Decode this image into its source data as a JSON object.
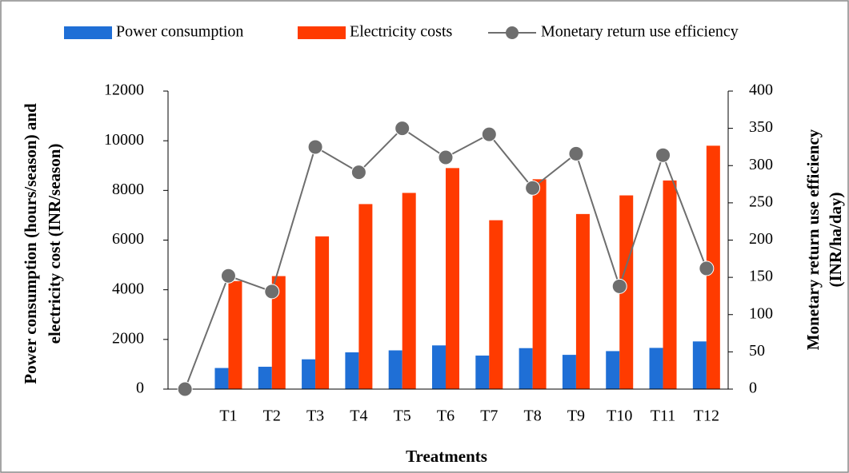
{
  "chart_data": {
    "type": "bar-line",
    "x_label": "Treatments",
    "y_label": [
      "Power consumption (hours/season) and",
      "electricity cost (INR/season)"
    ],
    "y2_label": [
      "Monetary return use efficiency",
      "(INR/ha/day)"
    ],
    "categories": [
      null,
      "T1",
      "T2",
      "T3",
      "T4",
      "T5",
      "T6",
      "T7",
      "T8",
      "T9",
      "T10",
      "T11",
      "T12"
    ],
    "series": [
      {
        "name": "Power consumption",
        "type": "bar",
        "color": "#1f6fd6",
        "values": [
          null,
          850,
          900,
          1200,
          1480,
          1560,
          1760,
          1350,
          1650,
          1380,
          1530,
          1660,
          1920
        ]
      },
      {
        "name": "Electricity costs",
        "type": "bar",
        "color": "#ff3b00",
        "values": [
          null,
          4350,
          4550,
          6150,
          7450,
          7900,
          8900,
          6800,
          8450,
          7050,
          7800,
          8400,
          9800
        ]
      },
      {
        "name": "Monetary return use efficiency",
        "type": "line",
        "axis": "y2",
        "color": "#6e6e6e",
        "values": [
          0,
          152,
          131,
          325,
          291,
          350,
          311,
          342,
          270,
          316,
          138,
          314,
          162
        ]
      }
    ],
    "ylim": [
      0,
      12000
    ],
    "yticks": [
      0,
      2000,
      4000,
      6000,
      8000,
      10000,
      12000
    ],
    "y2lim": [
      0,
      400
    ],
    "y2ticks": [
      0,
      50,
      100,
      150,
      200,
      250,
      300,
      350,
      400
    ],
    "legend": "top"
  }
}
